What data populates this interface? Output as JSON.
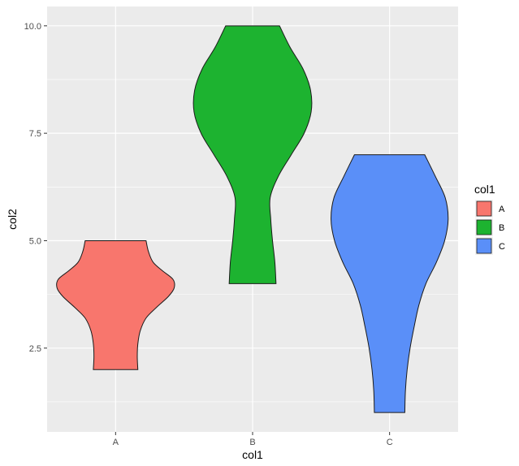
{
  "chart_data": {
    "type": "violin",
    "x_label": "col1",
    "y_label": "col2",
    "categories": [
      "A",
      "B",
      "C"
    ],
    "y_ticks": [
      2.5,
      5.0,
      7.5,
      10.0
    ],
    "y_tick_labels": [
      "2.5",
      "5.0",
      "7.5",
      "10.0"
    ],
    "ylim": [
      0.55,
      10.45
    ],
    "grid": true,
    "legend": {
      "title": "col1",
      "position": "right",
      "entries": [
        "A",
        "B",
        "C"
      ]
    },
    "colors": {
      "A": "#F8766D",
      "B": "#1DB330",
      "C": "#5A8FF8"
    },
    "series": [
      {
        "name": "A",
        "range": [
          2,
          5
        ],
        "profile": [
          [
            2.0,
            0.38
          ],
          [
            2.3,
            0.37
          ],
          [
            2.6,
            0.38
          ],
          [
            2.9,
            0.42
          ],
          [
            3.2,
            0.52
          ],
          [
            3.45,
            0.7
          ],
          [
            3.7,
            0.9
          ],
          [
            3.9,
            1.0
          ],
          [
            4.1,
            0.98
          ],
          [
            4.3,
            0.8
          ],
          [
            4.5,
            0.64
          ],
          [
            4.75,
            0.56
          ],
          [
            5.0,
            0.52
          ]
        ]
      },
      {
        "name": "B",
        "range": [
          4,
          10
        ],
        "profile": [
          [
            4.0,
            0.4
          ],
          [
            4.5,
            0.38
          ],
          [
            5.0,
            0.34
          ],
          [
            5.5,
            0.31
          ],
          [
            6.0,
            0.3
          ],
          [
            6.5,
            0.44
          ],
          [
            7.0,
            0.66
          ],
          [
            7.5,
            0.88
          ],
          [
            8.0,
            1.0
          ],
          [
            8.5,
            0.99
          ],
          [
            9.0,
            0.86
          ],
          [
            9.5,
            0.64
          ],
          [
            10.0,
            0.46
          ]
        ]
      },
      {
        "name": "C",
        "range": [
          1,
          7
        ],
        "profile": [
          [
            1.0,
            0.26
          ],
          [
            1.5,
            0.27
          ],
          [
            2.0,
            0.3
          ],
          [
            2.5,
            0.35
          ],
          [
            3.0,
            0.42
          ],
          [
            3.5,
            0.5
          ],
          [
            4.0,
            0.62
          ],
          [
            4.5,
            0.8
          ],
          [
            5.0,
            0.94
          ],
          [
            5.5,
            1.0
          ],
          [
            6.0,
            0.95
          ],
          [
            6.5,
            0.78
          ],
          [
            7.0,
            0.6
          ]
        ]
      }
    ]
  }
}
